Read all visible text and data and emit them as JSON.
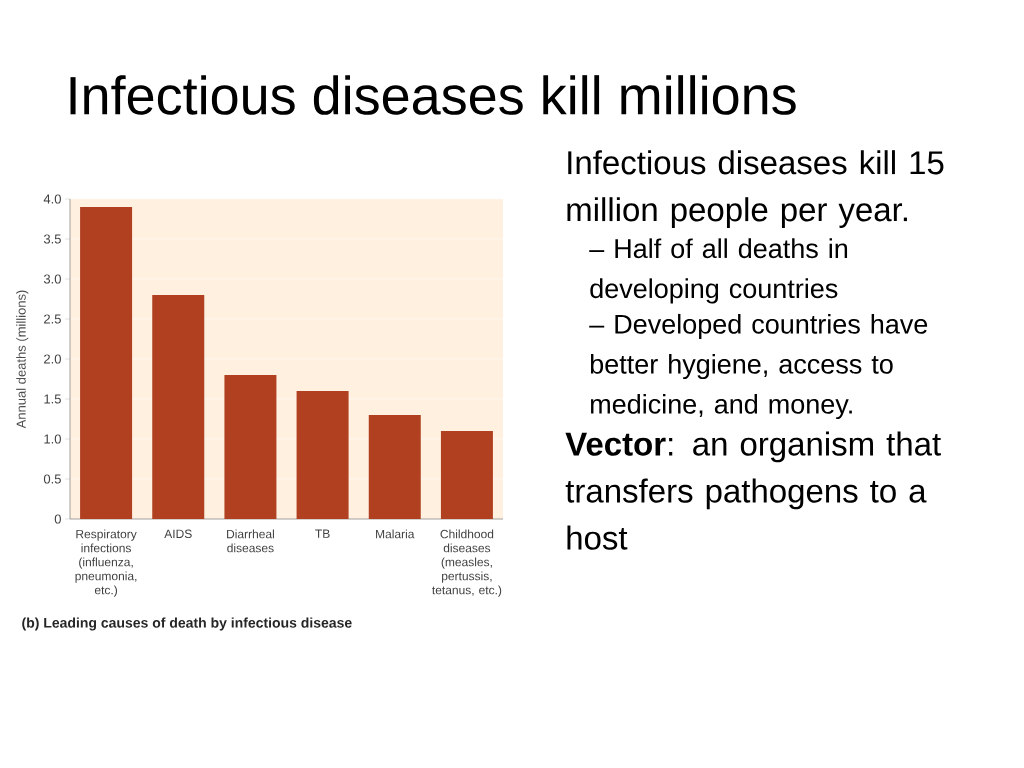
{
  "chart_data": {
    "type": "bar",
    "title": "Infectious diseases kill millions",
    "ylabel": "Annual deaths (millions)",
    "categories": [
      "Respiratory infections (influenza, pneumonia, etc.)",
      "AIDS",
      "Diarrheal diseases",
      "TB",
      "Malaria",
      "Childhood diseases (measles, pertussis, tetanus, etc.)"
    ],
    "values": [
      3.9,
      2.8,
      1.8,
      1.6,
      1.3,
      1.1
    ],
    "color": "#b04020",
    "ylim": [
      0,
      4
    ],
    "yticks": [
      0,
      0.5,
      {
        "value": 1,
        "label": "1.0"
      },
      1.5,
      {
        "value": 2,
        "label": "2.0"
      },
      2.5,
      {
        "value": 3,
        "label": "3.0"
      },
      3.5,
      {
        "value": 4,
        "label": "4.0"
      }
    ],
    "grid": "y",
    "annotations": [
      "(b) Leading causes of death by infectious disease",
      "Infectious diseases kill 15 million people per year.",
      "– Half of all deaths in developing countries",
      "– Developed countries have better hygiene, access to medicine, and money.",
      "**Vector**: an organism that transfers pathogens to a host"
    ]
  }
}
